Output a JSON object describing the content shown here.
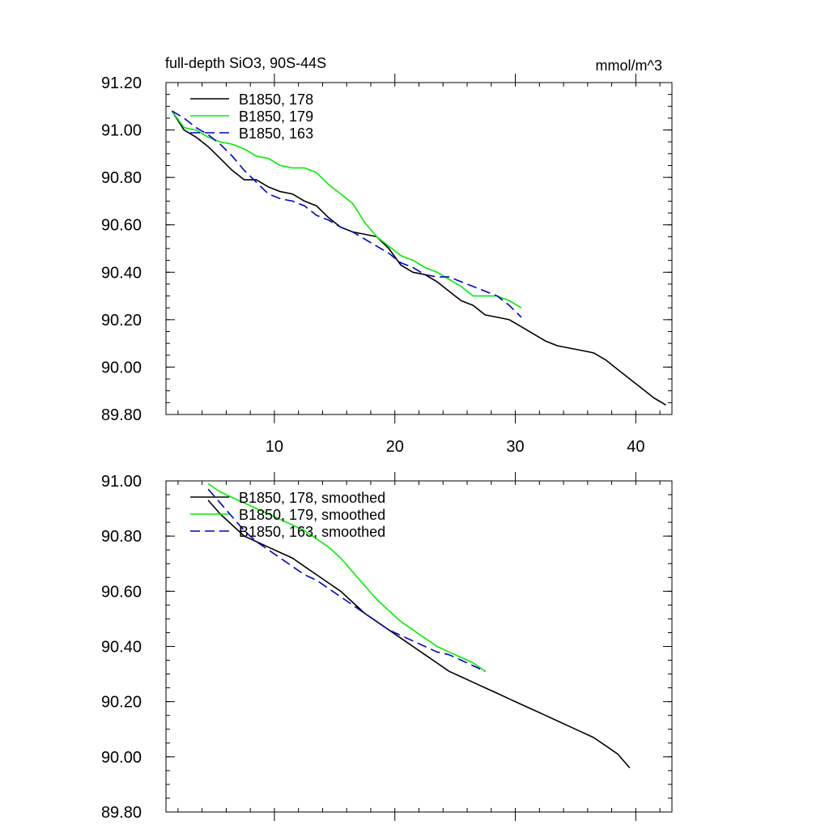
{
  "chart_data": [
    {
      "type": "line",
      "title": "full-depth SiO3, 90S-44S",
      "units": "mmol/m^3",
      "xlabel": "",
      "ylabel": "",
      "xlim": [
        1,
        43
      ],
      "ylim": [
        89.8,
        91.2
      ],
      "xticks": [
        10,
        20,
        30,
        40
      ],
      "xtick_labels": [
        "10",
        "20",
        "30",
        "40"
      ],
      "yticks": [
        89.8,
        90.0,
        90.2,
        90.4,
        90.6,
        90.8,
        91.0,
        91.2
      ],
      "ytick_labels": [
        "89.80",
        "90.00",
        "90.20",
        "90.40",
        "90.60",
        "90.80",
        "91.00",
        "91.20"
      ],
      "legend_position": "top-left",
      "series": [
        {
          "name": "B1850, 178",
          "color": "#000000",
          "dash": "solid",
          "x": [
            1.5,
            2.5,
            3.5,
            4.5,
            5.5,
            6.5,
            7.5,
            8.5,
            9.5,
            10.5,
            11.5,
            12.5,
            13.5,
            14.5,
            15.5,
            16.5,
            17.5,
            18.5,
            19.5,
            20.5,
            21.5,
            22.5,
            23.5,
            24.5,
            25.5,
            26.5,
            27.5,
            28.5,
            29.5,
            30.5,
            31.5,
            32.5,
            33.5,
            34.5,
            35.5,
            36.5,
            37.5,
            38.5,
            39.5,
            40.5,
            41.5,
            42.5
          ],
          "y": [
            91.08,
            91.0,
            90.97,
            90.93,
            90.88,
            90.83,
            90.79,
            90.79,
            90.76,
            90.74,
            90.73,
            90.7,
            90.68,
            90.63,
            90.59,
            90.57,
            90.56,
            90.55,
            90.5,
            90.43,
            90.4,
            90.39,
            90.36,
            90.32,
            90.28,
            90.26,
            90.22,
            90.21,
            90.2,
            90.17,
            90.14,
            90.11,
            90.09,
            90.08,
            90.07,
            90.06,
            90.03,
            89.99,
            89.95,
            89.91,
            89.87,
            89.84
          ]
        },
        {
          "name": "B1850, 179",
          "color": "#00ee00",
          "dash": "solid",
          "x": [
            1.5,
            2.5,
            3.5,
            4.5,
            5.5,
            6.5,
            7.5,
            8.5,
            9.5,
            10.5,
            11.5,
            12.5,
            13.5,
            14.5,
            15.5,
            16.5,
            17.5,
            18.5,
            19.5,
            20.5,
            21.5,
            22.5,
            23.5,
            24.5,
            25.5,
            26.5,
            27.5,
            28.5,
            29.5,
            30.5
          ],
          "y": [
            91.08,
            91.01,
            91.0,
            90.97,
            90.95,
            90.94,
            90.92,
            90.89,
            90.88,
            90.85,
            90.84,
            90.84,
            90.82,
            90.77,
            90.73,
            90.69,
            90.61,
            90.55,
            90.51,
            90.47,
            90.45,
            90.42,
            90.4,
            90.37,
            90.34,
            90.3,
            90.3,
            90.3,
            90.28,
            90.25
          ]
        },
        {
          "name": "B1850, 163",
          "color": "#0000cc",
          "dash": "dashed",
          "x": [
            1.5,
            2.5,
            3.5,
            4.5,
            5.5,
            6.5,
            7.5,
            8.5,
            9.5,
            10.5,
            11.5,
            12.5,
            13.5,
            14.5,
            15.5,
            16.5,
            17.5,
            18.5,
            19.5,
            20.5,
            21.5,
            22.5,
            23.5,
            24.5,
            25.5,
            26.5,
            27.5,
            28.5,
            29.5,
            30.5
          ],
          "y": [
            91.08,
            91.05,
            91.01,
            90.98,
            90.94,
            90.89,
            90.83,
            90.78,
            90.73,
            90.71,
            90.7,
            90.68,
            90.64,
            90.62,
            90.59,
            90.57,
            90.54,
            90.51,
            90.48,
            90.44,
            90.42,
            90.39,
            90.38,
            90.38,
            90.36,
            90.34,
            90.32,
            90.3,
            90.26,
            90.21
          ]
        }
      ]
    },
    {
      "type": "line",
      "title": "",
      "xlabel": "",
      "ylabel": "",
      "xlim": [
        1,
        43
      ],
      "ylim": [
        89.8,
        91.0
      ],
      "xticks": [
        10,
        20,
        30,
        40
      ],
      "xtick_labels": [],
      "yticks": [
        89.8,
        90.0,
        90.2,
        90.4,
        90.6,
        90.8,
        91.0
      ],
      "ytick_labels": [
        "89.80",
        "90.00",
        "90.20",
        "90.40",
        "90.60",
        "90.80",
        "91.00"
      ],
      "legend_position": "top-left",
      "series": [
        {
          "name": "B1850, 178, smoothed",
          "color": "#000000",
          "dash": "solid",
          "x": [
            4.5,
            5.5,
            6.5,
            7.5,
            8.5,
            9.5,
            10.5,
            11.5,
            12.5,
            13.5,
            14.5,
            15.5,
            16.5,
            17.5,
            18.5,
            19.5,
            20.5,
            21.5,
            22.5,
            23.5,
            24.5,
            25.5,
            26.5,
            27.5,
            28.5,
            29.5,
            30.5,
            31.5,
            32.5,
            33.5,
            34.5,
            35.5,
            36.5,
            37.5,
            38.5,
            39.5
          ],
          "y": [
            90.93,
            90.88,
            90.84,
            90.8,
            90.78,
            90.76,
            90.74,
            90.72,
            90.69,
            90.66,
            90.63,
            90.6,
            90.56,
            90.52,
            90.49,
            90.46,
            90.43,
            90.4,
            90.37,
            90.34,
            90.31,
            90.29,
            90.27,
            90.25,
            90.23,
            90.21,
            90.19,
            90.17,
            90.15,
            90.13,
            90.11,
            90.09,
            90.07,
            90.04,
            90.01,
            89.96
          ]
        },
        {
          "name": "B1850, 179, smoothed",
          "color": "#00ee00",
          "dash": "solid",
          "x": [
            4.5,
            5.5,
            6.5,
            7.5,
            8.5,
            9.5,
            10.5,
            11.5,
            12.5,
            13.5,
            14.5,
            15.5,
            16.5,
            17.5,
            18.5,
            19.5,
            20.5,
            21.5,
            22.5,
            23.5,
            24.5,
            25.5,
            26.5,
            27.5
          ],
          "y": [
            90.99,
            90.96,
            90.94,
            90.92,
            90.9,
            90.88,
            90.86,
            90.84,
            90.82,
            90.79,
            90.76,
            90.72,
            90.67,
            90.62,
            90.57,
            90.53,
            90.49,
            90.46,
            90.43,
            90.4,
            90.38,
            90.36,
            90.34,
            90.31
          ]
        },
        {
          "name": "B1850, 163, smoothed",
          "color": "#0000cc",
          "dash": "dashed",
          "x": [
            4.5,
            5.5,
            6.5,
            7.5,
            8.5,
            9.5,
            10.5,
            11.5,
            12.5,
            13.5,
            14.5,
            15.5,
            16.5,
            17.5,
            18.5,
            19.5,
            20.5,
            21.5,
            22.5,
            23.5,
            24.5,
            25.5,
            26.5,
            27.5
          ],
          "y": [
            90.97,
            90.92,
            90.87,
            90.82,
            90.78,
            90.75,
            90.72,
            90.69,
            90.66,
            90.64,
            90.61,
            90.58,
            90.55,
            90.52,
            90.49,
            90.46,
            90.44,
            90.42,
            90.4,
            90.38,
            90.37,
            90.35,
            90.33,
            90.31
          ]
        }
      ]
    }
  ]
}
